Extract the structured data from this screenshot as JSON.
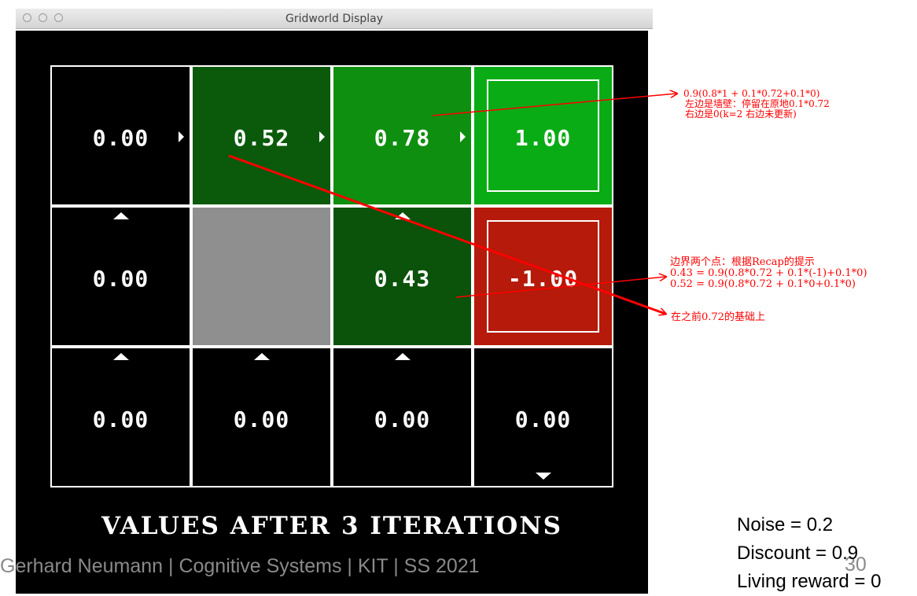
{
  "window": {
    "title": "Gridworld Display"
  },
  "grid": {
    "cells": [
      {
        "id": "r0c0",
        "value": "0.00",
        "color": "#000000"
      },
      {
        "id": "r0c1",
        "value": "0.52",
        "color": "#0b5a0b"
      },
      {
        "id": "r0c2",
        "value": "0.78",
        "color": "#0e8f10"
      },
      {
        "id": "r0c3",
        "value": "1.00",
        "color": "#0aac16",
        "terminal": true
      },
      {
        "id": "r1c0",
        "value": "0.00",
        "color": "#000000"
      },
      {
        "id": "r1c1",
        "value": "",
        "color": "#8f8f8f",
        "wall": true
      },
      {
        "id": "r1c2",
        "value": "0.43",
        "color": "#0b520b"
      },
      {
        "id": "r1c3",
        "value": "-1.00",
        "color": "#b51a0a",
        "terminal": true
      },
      {
        "id": "r2c0",
        "value": "0.00",
        "color": "#000000"
      },
      {
        "id": "r2c1",
        "value": "0.00",
        "color": "#000000"
      },
      {
        "id": "r2c2",
        "value": "0.00",
        "color": "#000000"
      },
      {
        "id": "r2c3",
        "value": "0.00",
        "color": "#000000"
      }
    ],
    "policy_arrows": [
      "arrow-right-icon",
      "arrow-up-icon",
      "arrow-down-icon"
    ]
  },
  "caption": "VALUES AFTER 3 ITERATIONS",
  "annotations": {
    "top_right": [
      "0.9(0.8*1 + 0.1*0.72+0.1*0)",
      "左边是墙壁：停留在原地0.1*0.72",
      "右边是0(k=2 右边未更新)"
    ],
    "middle_right": [
      "边界两个点：根据Recap的提示",
      "0.43 = 0.9(0.8*0.72 + 0.1*(-1)+0.1*0)",
      "0.52 = 0.9(0.8*0.72 + 0.1*0+0.1*0)"
    ],
    "bottom_right": "在之前0.72的基础上",
    "color": "#ff0000"
  },
  "footer": "Gerhard Neumann | Cognitive Systems | KIT | SS 2021",
  "page_number": "30",
  "params": {
    "noise": "Noise = 0.2",
    "discount": "Discount = 0.9",
    "living_reward": "Living reward = 0"
  }
}
